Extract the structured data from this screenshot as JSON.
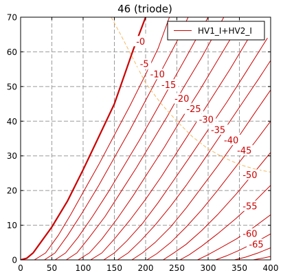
{
  "chart_data": {
    "type": "line",
    "title": "46 (triode)",
    "xlabel": "",
    "ylabel": "",
    "xlim": [
      0,
      400
    ],
    "ylim": [
      0,
      70
    ],
    "xticks": [
      0,
      50,
      100,
      150,
      200,
      250,
      300,
      350,
      400
    ],
    "yticks": [
      0,
      10,
      20,
      30,
      40,
      50,
      60,
      70
    ],
    "grid": true,
    "legend": {
      "position": "top-right",
      "entries": [
        "HV1_I+HV2_I"
      ]
    },
    "series_color": "#cc0000",
    "load_line_color": "#f5b860",
    "series": [
      {
        "label": "-0",
        "bold": true,
        "points": [
          [
            0,
            0
          ],
          [
            10,
            0.5
          ],
          [
            20,
            2
          ],
          [
            30,
            4.5
          ],
          [
            50,
            9.5
          ],
          [
            75,
            17
          ],
          [
            100,
            26
          ],
          [
            125,
            35.5
          ],
          [
            150,
            45
          ],
          [
            180,
            60.5
          ],
          [
            200,
            70
          ]
        ]
      },
      {
        "label": "-5",
        "points": [
          [
            22,
            0
          ],
          [
            40,
            2
          ],
          [
            60,
            7
          ],
          [
            80,
            13
          ],
          [
            100,
            19.5
          ],
          [
            125,
            27.5
          ],
          [
            150,
            36
          ],
          [
            175,
            44.5
          ],
          [
            200,
            53.5
          ],
          [
            220,
            61
          ],
          [
            238,
            70
          ]
        ]
      },
      {
        "label": "-10",
        "points": [
          [
            38,
            0
          ],
          [
            55,
            2
          ],
          [
            75,
            7
          ],
          [
            100,
            14
          ],
          [
            125,
            21.5
          ],
          [
            150,
            29.5
          ],
          [
            175,
            37.5
          ],
          [
            200,
            46
          ],
          [
            225,
            54.5
          ],
          [
            250,
            63
          ],
          [
            268,
            70
          ]
        ]
      },
      {
        "label": "-15",
        "points": [
          [
            55,
            0
          ],
          [
            72,
            2
          ],
          [
            92,
            6.5
          ],
          [
            115,
            12.5
          ],
          [
            140,
            19.5
          ],
          [
            165,
            27
          ],
          [
            190,
            34.5
          ],
          [
            215,
            42.5
          ],
          [
            240,
            50.5
          ],
          [
            265,
            58.5
          ],
          [
            300,
            70
          ]
        ]
      },
      {
        "label": "-20",
        "points": [
          [
            73,
            0
          ],
          [
            90,
            2
          ],
          [
            110,
            6.5
          ],
          [
            135,
            12.5
          ],
          [
            160,
            19.5
          ],
          [
            185,
            26.5
          ],
          [
            210,
            34
          ],
          [
            235,
            41.5
          ],
          [
            260,
            49.5
          ],
          [
            290,
            58.5
          ],
          [
            325,
            70
          ]
        ]
      },
      {
        "label": "-25",
        "points": [
          [
            92,
            0
          ],
          [
            110,
            2
          ],
          [
            130,
            6
          ],
          [
            155,
            12
          ],
          [
            180,
            18.5
          ],
          [
            205,
            25.5
          ],
          [
            230,
            32.5
          ],
          [
            255,
            40
          ],
          [
            285,
            48.5
          ],
          [
            315,
            57.5
          ],
          [
            350,
            68
          ]
        ]
      },
      {
        "label": "-30",
        "points": [
          [
            112,
            0
          ],
          [
            130,
            2
          ],
          [
            150,
            6
          ],
          [
            175,
            11.5
          ],
          [
            200,
            17.5
          ],
          [
            225,
            24
          ],
          [
            250,
            31
          ],
          [
            275,
            38
          ],
          [
            305,
            46.5
          ],
          [
            335,
            55
          ],
          [
            365,
            64
          ]
        ]
      },
      {
        "label": "-35",
        "points": [
          [
            133,
            0
          ],
          [
            150,
            2
          ],
          [
            170,
            5.5
          ],
          [
            195,
            10.5
          ],
          [
            220,
            16.5
          ],
          [
            245,
            23
          ],
          [
            270,
            29.5
          ],
          [
            300,
            37.5
          ],
          [
            330,
            45.5
          ],
          [
            360,
            54
          ],
          [
            395,
            64
          ]
        ]
      },
      {
        "label": "-40",
        "points": [
          [
            155,
            0
          ],
          [
            172,
            2
          ],
          [
            192,
            5.5
          ],
          [
            215,
            10
          ],
          [
            240,
            15.5
          ],
          [
            265,
            21.5
          ],
          [
            290,
            28
          ],
          [
            320,
            36
          ],
          [
            350,
            44
          ],
          [
            380,
            52
          ],
          [
            400,
            57.5
          ]
        ]
      },
      {
        "label": "-45",
        "points": [
          [
            178,
            0
          ],
          [
            195,
            2
          ],
          [
            215,
            5
          ],
          [
            240,
            9.5
          ],
          [
            265,
            15
          ],
          [
            290,
            21
          ],
          [
            315,
            27
          ],
          [
            345,
            34.5
          ],
          [
            375,
            42.5
          ],
          [
            400,
            49
          ]
        ]
      },
      {
        "label": "-50",
        "points": [
          [
            202,
            0
          ],
          [
            218,
            1.8
          ],
          [
            240,
            5
          ],
          [
            265,
            9.5
          ],
          [
            290,
            14.5
          ],
          [
            315,
            20
          ],
          [
            345,
            27
          ],
          [
            375,
            34
          ],
          [
            400,
            40
          ]
        ]
      },
      {
        "label": "-55",
        "points": [
          [
            228,
            0
          ],
          [
            245,
            2
          ],
          [
            265,
            4.5
          ],
          [
            290,
            8.5
          ],
          [
            315,
            13
          ],
          [
            345,
            19
          ],
          [
            375,
            25.5
          ],
          [
            400,
            31
          ]
        ]
      },
      {
        "label": "-60",
        "points": [
          [
            255,
            0
          ],
          [
            270,
            1.5
          ],
          [
            290,
            4
          ],
          [
            315,
            7.5
          ],
          [
            345,
            12
          ],
          [
            375,
            17
          ],
          [
            400,
            21.5
          ]
        ]
      },
      {
        "label": "-65",
        "points": [
          [
            283,
            0
          ],
          [
            300,
            1.5
          ],
          [
            320,
            3.5
          ],
          [
            345,
            6
          ],
          [
            370,
            9
          ],
          [
            400,
            13
          ]
        ]
      },
      {
        "label": "",
        "points": [
          [
            312,
            0
          ],
          [
            330,
            1.2
          ],
          [
            350,
            2.8
          ],
          [
            375,
            5
          ],
          [
            400,
            7.5
          ]
        ]
      },
      {
        "label": "",
        "points": [
          [
            342,
            0
          ],
          [
            360,
            0.8
          ],
          [
            380,
            2
          ],
          [
            400,
            3.5
          ]
        ]
      },
      {
        "label": "",
        "points": [
          [
            372,
            0
          ],
          [
            390,
            0.6
          ],
          [
            400,
            1
          ]
        ]
      }
    ],
    "load_line": [
      [
        145,
        70
      ],
      [
        160,
        65
      ],
      [
        180,
        58
      ],
      [
        200,
        51
      ],
      [
        225,
        45
      ],
      [
        250,
        40
      ],
      [
        275,
        35.5
      ],
      [
        300,
        32
      ],
      [
        325,
        29.5
      ],
      [
        350,
        27.5
      ],
      [
        375,
        26.2
      ],
      [
        400,
        25.3
      ]
    ],
    "curve_labels": [
      {
        "text": "-0",
        "x": 192,
        "y": 63
      },
      {
        "text": "-5",
        "x": 198,
        "y": 56.5
      },
      {
        "text": "-10",
        "x": 219,
        "y": 53.5
      },
      {
        "text": "-15",
        "x": 237,
        "y": 50.5
      },
      {
        "text": "-20",
        "x": 258,
        "y": 46.5
      },
      {
        "text": "-25",
        "x": 277,
        "y": 43.5
      },
      {
        "text": "-30",
        "x": 297,
        "y": 40.5
      },
      {
        "text": "-35",
        "x": 316,
        "y": 37.5
      },
      {
        "text": "-40",
        "x": 337,
        "y": 34.5
      },
      {
        "text": "-45",
        "x": 358,
        "y": 31.5
      },
      {
        "text": "-50",
        "x": 367,
        "y": 24.5
      },
      {
        "text": "-55",
        "x": 367,
        "y": 15.5
      },
      {
        "text": "-60",
        "x": 367,
        "y": 7.5
      },
      {
        "text": "-65",
        "x": 377,
        "y": 4.5
      }
    ]
  }
}
